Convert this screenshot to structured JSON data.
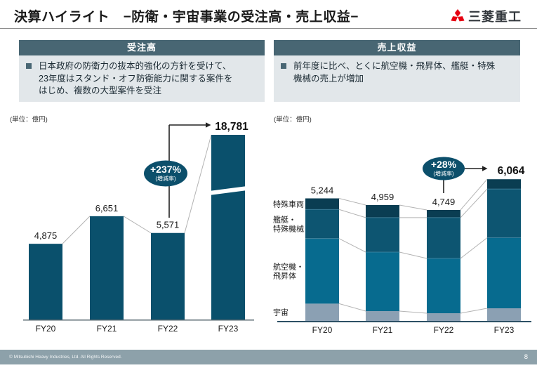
{
  "header": {
    "title": "決算ハイライト　−防衛・宇宙事業の受注高・売上収益−",
    "logo_text": "三菱重工",
    "logo_icon": "mitsubishi-three-diamond-icon",
    "logo_red": "#e60012"
  },
  "panels": {
    "orders": {
      "title": "受注高",
      "lines": [
        "日本政府の防衛力の抜本的強化の方針を受けて、",
        "23年度はスタンド・オフ防衛能力に関する案件を",
        "はじめ、複数の大型案件を受注"
      ]
    },
    "revenue": {
      "title": "売上収益",
      "lines": [
        "前年度に比べ、とくに航空機・飛昇体、艦艇・特殊",
        "機械の売上が増加",
        ""
      ]
    }
  },
  "footer": {
    "copyright": "© Mitsubishi Heavy Industries, Ltd.  All Rights Reserved.",
    "page_number": "8"
  },
  "colors": {
    "panel_header": "#486673",
    "panel_body": "#e2e7ea",
    "footer_bar": "#8da1aa",
    "annotation_ellipse": "#0c4f6b"
  },
  "chart_data": [
    {
      "type": "bar",
      "title": "受注高",
      "unit_label": "(単位：億円)",
      "categories": [
        "FY20",
        "FY21",
        "FY22",
        "FY23"
      ],
      "values": [
        4875,
        6651,
        5571,
        18781
      ],
      "value_labels": [
        "4,875",
        "6,651",
        "5,571",
        "18,781"
      ],
      "bar_color": "#0a506c",
      "axis_break_last_bar": true,
      "annotation": {
        "label": "+237%",
        "sublabel": "(増減率)",
        "color": "#0c4f6b"
      },
      "legend_position": "none",
      "grid": false
    },
    {
      "type": "bar",
      "stacked": true,
      "title": "売上収益",
      "unit_label": "(単位：億円)",
      "categories": [
        "FY20",
        "FY21",
        "FY22",
        "FY23"
      ],
      "totals": [
        5244,
        4959,
        4749,
        6064
      ],
      "total_labels": [
        "5,244",
        "4,959",
        "4,749",
        "6,064"
      ],
      "series": [
        {
          "name": "宇宙",
          "label_lines": [
            "宇宙"
          ],
          "color": "#8ba0b3",
          "values": [
            740,
            420,
            330,
            540
          ]
        },
        {
          "name": "航空機・飛昇体",
          "label_lines": [
            "航空機・",
            "飛昇体"
          ],
          "color": "#076b8f",
          "values": [
            2785,
            2525,
            2345,
            3020
          ]
        },
        {
          "name": "艦艇・特殊機械",
          "label_lines": [
            "艦艇・",
            "特殊機械"
          ],
          "color": "#0d5571",
          "values": [
            1245,
            1475,
            1745,
            2085
          ]
        },
        {
          "name": "特殊車両",
          "label_lines": [
            "特殊車両"
          ],
          "color": "#0a3d52",
          "values": [
            474,
            539,
            329,
            419
          ]
        }
      ],
      "annotation": {
        "label": "+28%",
        "sublabel": "(増減率)",
        "color": "#0c4f6b"
      },
      "legend_position": "left-of-bars",
      "grid": false
    }
  ]
}
